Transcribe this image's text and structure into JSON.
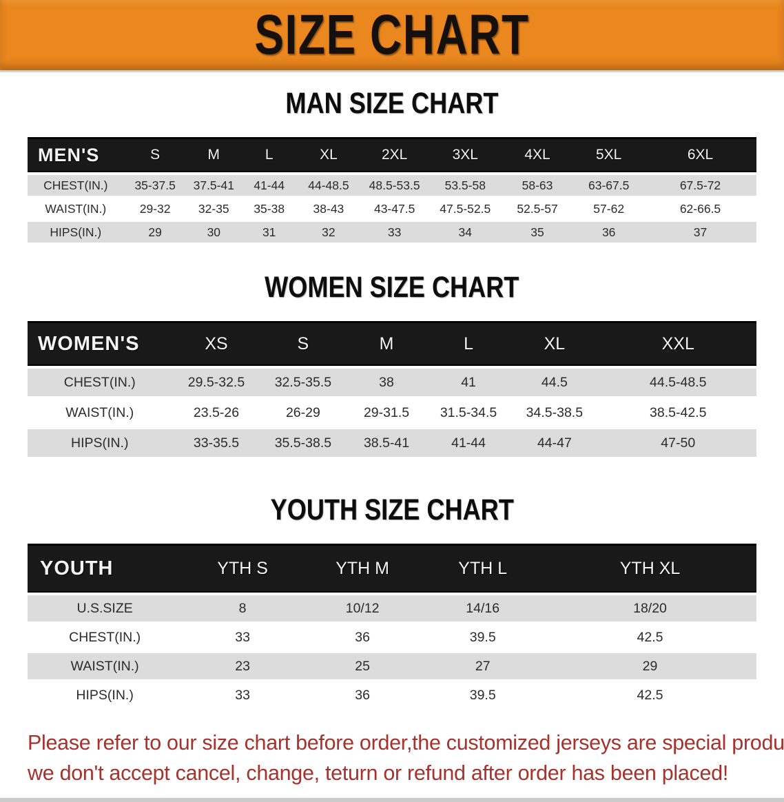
{
  "banner": {
    "title": "SIZE CHART"
  },
  "colors": {
    "banner_bg": "#ea871e",
    "banner_text": "#15100c",
    "table_header_bg": "#191919",
    "table_header_text": "#f4f4f4",
    "row_shade": "#dcdcdc",
    "notice_text": "#a5322c"
  },
  "sections": [
    {
      "heading": "MAN SIZE CHART",
      "label": "MEN'S",
      "columns": [
        "S",
        "M",
        "L",
        "XL",
        "2XL",
        "3XL",
        "4XL",
        "5XL",
        "6XL"
      ],
      "rows": [
        {
          "label": "CHEST(IN.)",
          "shade": true,
          "values": [
            "35-37.5",
            "37.5-41",
            "41-44",
            "44-48.5",
            "48.5-53.5",
            "53.5-58",
            "58-63",
            "63-67.5",
            "67.5-72"
          ]
        },
        {
          "label": "WAIST(IN.)",
          "shade": false,
          "values": [
            "29-32",
            "32-35",
            "35-38",
            "38-43",
            "43-47.5",
            "47.5-52.5",
            "52.5-57",
            "57-62",
            "62-66.5"
          ]
        },
        {
          "label": "HIPS(IN.)",
          "shade": true,
          "values": [
            "29",
            "30",
            "31",
            "32",
            "33",
            "34",
            "35",
            "36",
            "37"
          ]
        }
      ]
    },
    {
      "heading": "WOMEN SIZE CHART",
      "label": "WOMEN'S",
      "columns": [
        "XS",
        "S",
        "M",
        "L",
        "XL",
        "XXL"
      ],
      "rows": [
        {
          "label": "CHEST(IN.)",
          "shade": true,
          "values": [
            "29.5-32.5",
            "32.5-35.5",
            "38",
            "41",
            "44.5",
            "44.5-48.5"
          ]
        },
        {
          "label": "WAIST(IN.)",
          "shade": false,
          "values": [
            "23.5-26",
            "26-29",
            "29-31.5",
            "31.5-34.5",
            "34.5-38.5",
            "38.5-42.5"
          ]
        },
        {
          "label": "HIPS(IN.)",
          "shade": true,
          "values": [
            "33-35.5",
            "35.5-38.5",
            "38.5-41",
            "41-44",
            "44-47",
            "47-50"
          ]
        }
      ]
    },
    {
      "heading": "YOUTH SIZE CHART",
      "label": "YOUTH",
      "columns": [
        "YTH S",
        "YTH M",
        "YTH L",
        "YTH XL"
      ],
      "rows": [
        {
          "label": "U.S.SIZE",
          "shade": true,
          "values": [
            "8",
            "10/12",
            "14/16",
            "18/20"
          ]
        },
        {
          "label": "CHEST(IN.)",
          "shade": false,
          "values": [
            "33",
            "36",
            "39.5",
            "42.5"
          ]
        },
        {
          "label": "WAIST(IN.)",
          "shade": true,
          "values": [
            "23",
            "25",
            "27",
            "29"
          ]
        },
        {
          "label": "HIPS(IN.)",
          "shade": false,
          "values": [
            "33",
            "36",
            "39.5",
            "42.5"
          ]
        }
      ]
    }
  ],
  "notice": {
    "line1": "Please refer to our size chart before order,the customized jerseys are special products,",
    "line2": "we don't accept cancel, change, teturn or refund after order has been placed!"
  }
}
